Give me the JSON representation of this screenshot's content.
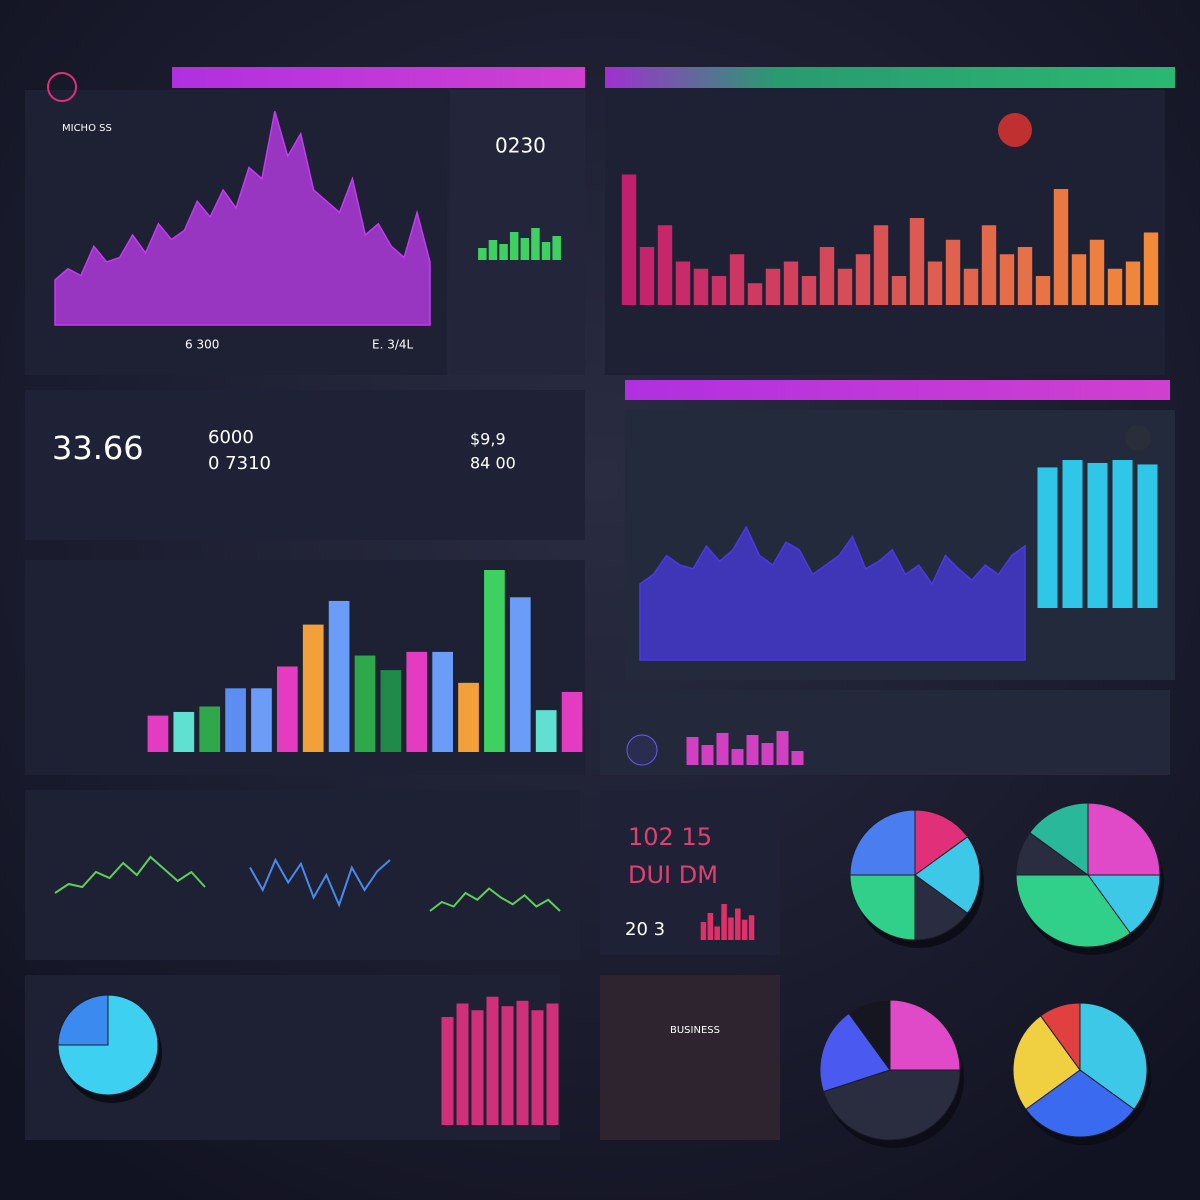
{
  "chart_data": [
    {
      "type": "area",
      "color": "#c23cf0",
      "ylim": [
        0,
        100
      ],
      "values": [
        20,
        25,
        22,
        35,
        28,
        30,
        40,
        32,
        45,
        38,
        42,
        55,
        48,
        60,
        52,
        70,
        65,
        95,
        75,
        85,
        60,
        55,
        50,
        65,
        40,
        45,
        35,
        30,
        50,
        28
      ]
    },
    {
      "type": "bar",
      "gradient": [
        "#c2206e",
        "#f28a3a"
      ],
      "ylim": [
        0,
        100
      ],
      "values": [
        90,
        40,
        55,
        30,
        25,
        20,
        35,
        15,
        25,
        30,
        20,
        40,
        25,
        35,
        55,
        20,
        60,
        30,
        45,
        25,
        55,
        35,
        40,
        20,
        80,
        35,
        45,
        25,
        30,
        50
      ]
    },
    {
      "type": "area",
      "color": "#4a3ae0",
      "ylim": [
        0,
        100
      ],
      "values": [
        40,
        45,
        55,
        50,
        48,
        60,
        52,
        58,
        70,
        55,
        50,
        62,
        58,
        45,
        50,
        55,
        65,
        48,
        52,
        58,
        45,
        50,
        40,
        55,
        48,
        42,
        50,
        45,
        55,
        60
      ]
    },
    {
      "type": "bar",
      "color": "#2fc6e8",
      "ylim": [
        0,
        100
      ],
      "values": [
        95,
        100,
        98,
        100,
        97
      ]
    },
    {
      "type": "bar",
      "ylim": [
        0,
        100
      ],
      "values": [
        20,
        22,
        25,
        35,
        35,
        47,
        70,
        83,
        53,
        45,
        55,
        55,
        38,
        100,
        85,
        23,
        33
      ],
      "colors": [
        "#e43cc0",
        "#5fe0d0",
        "#2ea84a",
        "#5b8ef0",
        "#6a9cf8",
        "#e43cc0",
        "#f2a03a",
        "#6a9cf8",
        "#2ea84a",
        "#1f8a4a",
        "#e43cc0",
        "#6a9cf8",
        "#f2a03a",
        "#3ed060",
        "#6a9cf8",
        "#5fe0d0",
        "#e43cc0"
      ]
    },
    {
      "type": "line",
      "color": "#5ed05a",
      "ylim": [
        0,
        100
      ],
      "values": [
        20,
        35,
        30,
        55,
        45,
        70,
        50,
        80,
        60,
        40,
        55,
        30
      ]
    },
    {
      "type": "line",
      "color": "#4a8af0",
      "ylim": [
        0,
        100
      ],
      "values": [
        70,
        40,
        80,
        50,
        75,
        30,
        60,
        20,
        70,
        40,
        65,
        80
      ]
    },
    {
      "type": "line",
      "color": "#5ed05a",
      "ylim": [
        0,
        100
      ],
      "values": [
        20,
        40,
        30,
        60,
        45,
        70,
        50,
        35,
        55,
        30,
        45,
        20
      ]
    },
    {
      "type": "pie",
      "values": [
        15,
        20,
        15,
        25,
        25
      ],
      "colors": [
        "#e0307a",
        "#3ec8e8",
        "#2a2d40",
        "#30d08a",
        "#4a7ef0"
      ]
    },
    {
      "type": "pie",
      "values": [
        25,
        15,
        35,
        10,
        15
      ],
      "colors": [
        "#e04ac8",
        "#3ec8e8",
        "#30d08a",
        "#2a2d40",
        "#2ab89a"
      ]
    },
    {
      "type": "pie",
      "values": [
        75,
        25
      ],
      "colors": [
        "#3ed0f0",
        "#3a8af0"
      ]
    },
    {
      "type": "pie",
      "values": [
        25,
        45,
        20,
        10
      ],
      "colors": [
        "#e04ac8",
        "#2a2d40",
        "#4a5af0",
        "#15161f"
      ]
    },
    {
      "type": "pie",
      "values": [
        35,
        30,
        25,
        10
      ],
      "colors": [
        "#3ec8e8",
        "#3a6af0",
        "#f0d040",
        "#e04040"
      ]
    },
    {
      "type": "bar",
      "color": "#3ed060",
      "ylim": [
        0,
        100
      ],
      "values": [
        30,
        50,
        40,
        70,
        55,
        80,
        45,
        60
      ]
    },
    {
      "type": "bar",
      "color": "#d0307a",
      "ylim": [
        0,
        100
      ],
      "values": [
        80,
        90,
        85,
        95,
        88,
        92,
        85,
        90
      ]
    },
    {
      "type": "bar",
      "color": "#e0306a",
      "ylim": [
        0,
        100
      ],
      "values": [
        40,
        60,
        30,
        80,
        50,
        70,
        45,
        55
      ]
    },
    {
      "type": "bar",
      "color": "#d040c0",
      "ylim": [
        0,
        100
      ],
      "values": [
        70,
        50,
        80,
        40,
        75,
        55,
        85,
        35
      ]
    }
  ],
  "texts": [
    "33.66",
    "0230",
    "6000",
    "0 7310",
    "$9,9",
    "84 00",
    "102 15",
    "DUI DM",
    "20 3",
    "E. 3/4L",
    "6 300",
    "MICHO SS",
    "BUSINESS"
  ]
}
